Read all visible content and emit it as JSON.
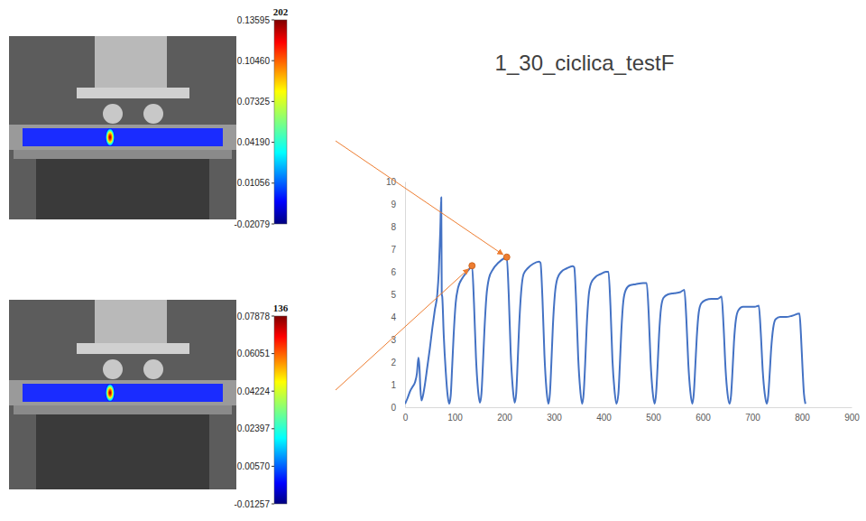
{
  "chart_data": {
    "type": "line",
    "title": "1_30_ciclica_testF",
    "color": "#4472c4",
    "grid": false,
    "xlim": [
      0,
      900
    ],
    "xticks": [
      0,
      100,
      200,
      300,
      400,
      500,
      600,
      700,
      800,
      900
    ],
    "ylim": [
      0,
      10
    ],
    "yticks": [
      0,
      1,
      2,
      3,
      4,
      5,
      6,
      7,
      8,
      9,
      10
    ],
    "x": [
      0,
      5,
      10,
      15,
      20,
      24,
      27,
      29,
      31,
      33,
      36,
      40,
      45,
      50,
      55,
      60,
      65,
      68,
      71,
      73,
      74,
      75,
      78,
      82,
      86,
      89,
      92,
      95,
      98,
      102,
      107,
      115,
      125,
      132,
      135,
      139,
      143,
      147,
      151,
      154,
      157,
      160,
      164,
      169,
      177,
      188,
      200,
      205,
      209,
      213,
      217,
      221,
      224,
      227,
      230,
      234,
      239,
      247,
      258,
      270,
      273,
      277,
      281,
      285,
      289,
      292,
      295,
      298,
      302,
      307,
      315,
      326,
      338,
      341,
      345,
      349,
      353,
      357,
      360,
      363,
      366,
      370,
      375,
      383,
      394,
      405,
      410,
      414,
      418,
      422,
      426,
      430,
      433,
      436,
      440,
      445,
      453,
      465,
      480,
      487,
      491,
      495,
      499,
      503,
      506,
      509,
      512,
      516,
      521,
      530,
      542,
      555,
      563,
      567,
      571,
      575,
      579,
      582,
      585,
      588,
      592,
      597,
      606,
      618,
      630,
      638,
      642,
      646,
      650,
      654,
      657,
      660,
      663,
      667,
      672,
      681,
      693,
      705,
      713,
      717,
      721,
      725,
      729,
      732,
      735,
      738,
      742,
      747,
      756,
      768,
      780,
      795,
      798,
      801,
      804,
      807
    ],
    "values": [
      0.15,
      0.4,
      0.7,
      0.9,
      1.1,
      1.5,
      2.2,
      1.8,
      0.8,
      0.3,
      0.5,
      1.0,
      1.8,
      2.6,
      3.5,
      4.3,
      5.0,
      6.0,
      7.8,
      9.3,
      5.0,
      4.9,
      3.2,
      1.6,
      0.5,
      0.15,
      0.5,
      1.8,
      3.2,
      4.6,
      5.3,
      5.7,
      6.0,
      6.2,
      6.27,
      4.6,
      2.2,
      0.8,
      0.2,
      0.6,
      1.9,
      3.4,
      4.9,
      5.7,
      6.1,
      6.4,
      6.6,
      6.65,
      5.0,
      2.4,
      0.9,
      0.2,
      0.6,
      2.0,
      3.6,
      5.1,
      5.9,
      6.15,
      6.35,
      6.45,
      6.4,
      4.8,
      2.3,
      0.8,
      0.15,
      0.6,
      2.0,
      3.6,
      5.0,
      5.7,
      6.0,
      6.15,
      6.25,
      6.2,
      4.6,
      2.2,
      0.8,
      0.15,
      0.6,
      1.9,
      3.5,
      4.9,
      5.5,
      5.75,
      5.9,
      6.0,
      6.0,
      4.5,
      2.1,
      0.8,
      0.15,
      0.6,
      1.9,
      3.4,
      4.7,
      5.2,
      5.4,
      5.45,
      5.5,
      5.5,
      4.2,
      2.0,
      0.7,
      0.15,
      0.6,
      1.8,
      3.2,
      4.4,
      4.85,
      5.0,
      5.05,
      5.1,
      5.2,
      3.9,
      1.9,
      0.7,
      0.15,
      0.6,
      1.8,
      3.1,
      4.2,
      4.6,
      4.75,
      4.8,
      4.8,
      4.9,
      3.6,
      1.7,
      0.6,
      0.15,
      0.5,
      1.6,
      2.9,
      3.9,
      4.3,
      4.45,
      4.45,
      4.45,
      4.5,
      3.3,
      1.6,
      0.6,
      0.15,
      0.5,
      1.5,
      2.6,
      3.5,
      3.9,
      4.0,
      4.0,
      4.05,
      4.15,
      3.2,
      1.8,
      0.6,
      0.15
    ],
    "highlights": {
      "x": [
        135,
        205
      ],
      "values": [
        6.27,
        6.65
      ],
      "color": "#ed7d31",
      "marker": "circle"
    }
  },
  "images": [
    {
      "frame": 202,
      "colorbar": {
        "range": [
          -0.02079,
          0.13595
        ],
        "ticks": [
          0.13595,
          {
            "value": 0.1046,
            "label": "0.10460"
          },
          0.07325,
          {
            "value": 0.0419,
            "label": "0.04190"
          },
          0.01056,
          -0.02079
        ]
      }
    },
    {
      "frame": 136,
      "colorbar": {
        "range": [
          -0.01257,
          0.07878
        ],
        "ticks": [
          0.07878,
          0.06051,
          0.04224,
          0.02397,
          {
            "value": 0.0057,
            "label": "0.00570"
          },
          -0.01257
        ]
      }
    }
  ]
}
